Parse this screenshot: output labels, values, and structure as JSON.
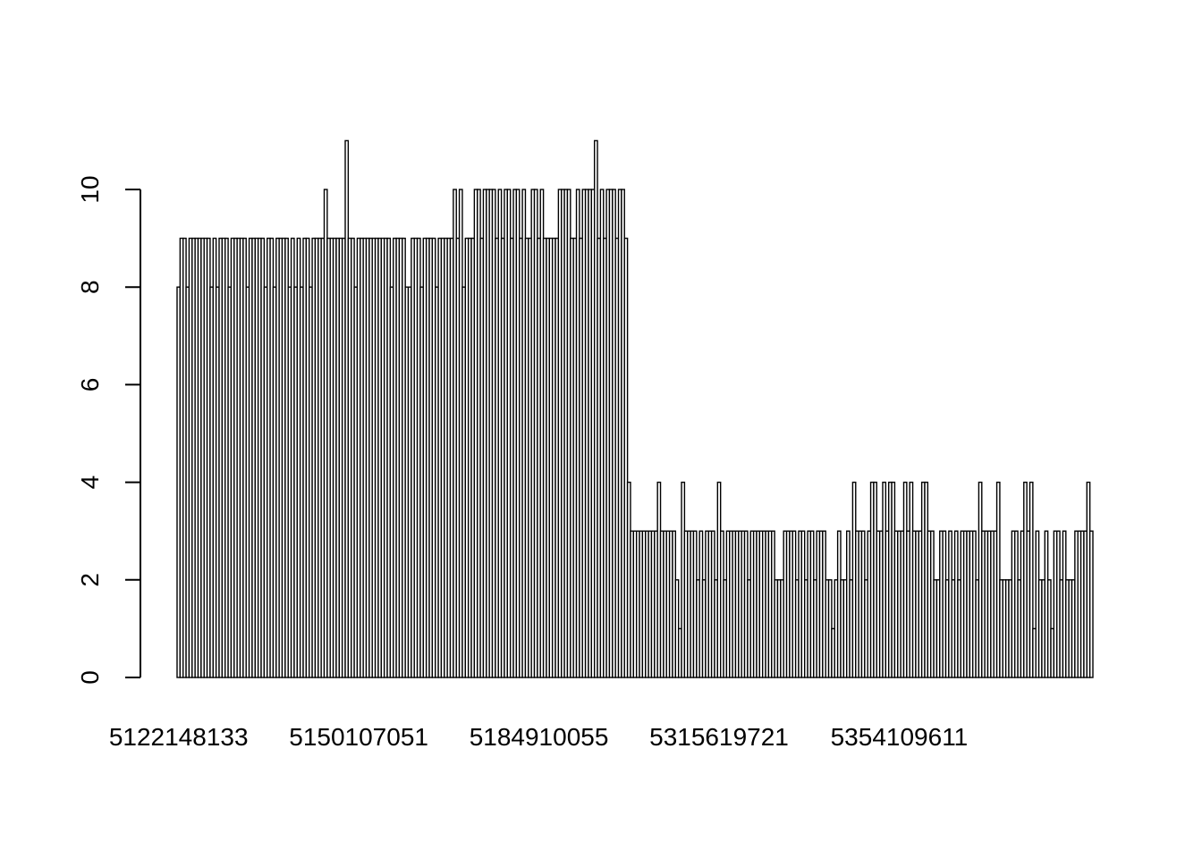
{
  "chart_data": {
    "type": "bar",
    "title": "",
    "xlabel": "",
    "ylabel": "",
    "ylim": [
      0,
      11
    ],
    "yticks": [
      0,
      2,
      4,
      6,
      8,
      10
    ],
    "x_tick_labels": [
      "5122148133",
      "5150107051",
      "5184910055",
      "5315619721",
      "5354109611"
    ],
    "x_tick_label_bar_index": [
      0,
      60,
      120,
      180,
      240
    ],
    "grid": false,
    "legend": "none",
    "bar_fill": "#ffffff",
    "bar_stroke": "#000000",
    "values": [
      8,
      9,
      9,
      8,
      9,
      9,
      9,
      9,
      9,
      9,
      9,
      8,
      9,
      8,
      9,
      9,
      9,
      8,
      9,
      9,
      9,
      9,
      9,
      8,
      9,
      9,
      9,
      9,
      9,
      8,
      9,
      9,
      8,
      9,
      9,
      9,
      9,
      8,
      9,
      8,
      9,
      8,
      9,
      9,
      8,
      9,
      9,
      9,
      9,
      10,
      9,
      9,
      9,
      9,
      9,
      9,
      11,
      9,
      9,
      8,
      9,
      9,
      9,
      9,
      9,
      9,
      9,
      9,
      9,
      9,
      9,
      8,
      9,
      9,
      9,
      9,
      8,
      8,
      9,
      9,
      9,
      8,
      9,
      9,
      9,
      9,
      8,
      9,
      9,
      9,
      9,
      9,
      10,
      9,
      10,
      8,
      9,
      9,
      9,
      10,
      10,
      9,
      10,
      10,
      10,
      10,
      9,
      10,
      9,
      10,
      10,
      9,
      10,
      10,
      9,
      10,
      9,
      9,
      10,
      10,
      9,
      10,
      9,
      9,
      9,
      9,
      9,
      10,
      10,
      10,
      10,
      9,
      9,
      10,
      9,
      10,
      10,
      10,
      10,
      11,
      9,
      10,
      9,
      10,
      10,
      10,
      9,
      10,
      10,
      9,
      4,
      3,
      3,
      3,
      3,
      3,
      3,
      3,
      3,
      3,
      4,
      3,
      3,
      3,
      3,
      3,
      2,
      1,
      4,
      3,
      3,
      3,
      3,
      2,
      3,
      2,
      3,
      3,
      3,
      2,
      4,
      3,
      2,
      3,
      3,
      3,
      3,
      3,
      3,
      3,
      2,
      3,
      3,
      3,
      3,
      3,
      3,
      3,
      3,
      2,
      2,
      2,
      3,
      3,
      3,
      3,
      2,
      3,
      3,
      2,
      3,
      3,
      2,
      3,
      3,
      3,
      2,
      2,
      1,
      2,
      3,
      2,
      2,
      3,
      2,
      4,
      3,
      3,
      3,
      2,
      3,
      4,
      4,
      3,
      3,
      4,
      3,
      4,
      4,
      3,
      3,
      3,
      4,
      3,
      4,
      3,
      3,
      3,
      4,
      4,
      3,
      3,
      2,
      2,
      3,
      3,
      2,
      3,
      2,
      3,
      2,
      3,
      3,
      3,
      3,
      3,
      2,
      4,
      3,
      3,
      3,
      3,
      3,
      4,
      2,
      2,
      2,
      2,
      3,
      3,
      2,
      3,
      4,
      3,
      4,
      1,
      3,
      2,
      2,
      3,
      2,
      1,
      3,
      3,
      2,
      3,
      2,
      2,
      2,
      3,
      3,
      3,
      3,
      4,
      3
    ]
  }
}
